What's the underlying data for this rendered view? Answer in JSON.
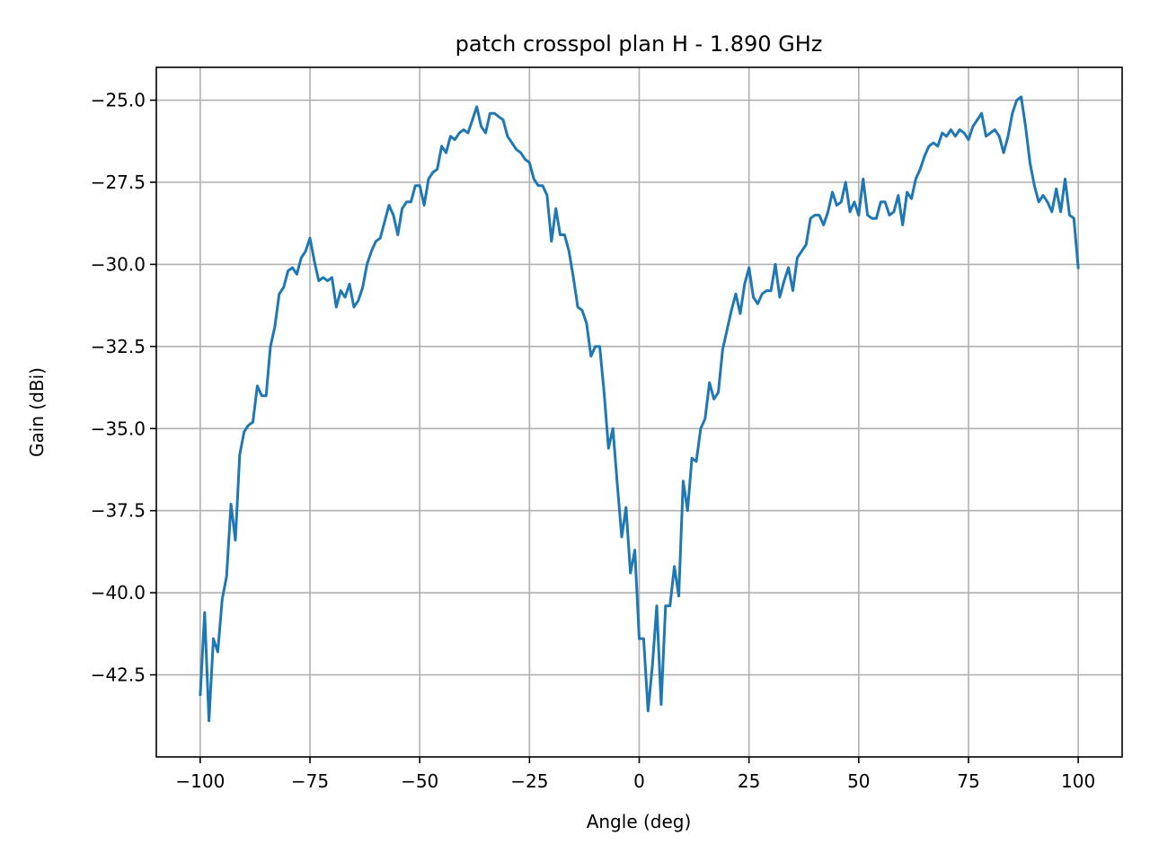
{
  "chart_data": {
    "type": "line",
    "title": "patch crosspol plan H - 1.890 GHz",
    "xlabel": "Angle (deg)",
    "ylabel": "Gain (dBi)",
    "xlim": [
      -110,
      110
    ],
    "ylim": [
      -45.0,
      -24.0
    ],
    "xticks": [
      -100,
      -75,
      -50,
      -25,
      0,
      25,
      50,
      75,
      100
    ],
    "xtick_labels": [
      "−100",
      "−75",
      "−50",
      "−25",
      "0",
      "25",
      "50",
      "75",
      "100"
    ],
    "yticks": [
      -25.0,
      -27.5,
      -30.0,
      -32.5,
      -35.0,
      -37.5,
      -40.0,
      -42.5
    ],
    "ytick_labels": [
      "−25.0",
      "−27.5",
      "−30.0",
      "−32.5",
      "−35.0",
      "−37.5",
      "−40.0",
      "−42.5"
    ],
    "grid": true,
    "line_color": "#1f77b4",
    "series": [
      {
        "points": [
          [
            -100,
            -43.1
          ],
          [
            -99,
            -40.6
          ],
          [
            -98,
            -43.9
          ],
          [
            -97,
            -41.4
          ],
          [
            -96,
            -41.8
          ],
          [
            -95,
            -40.2
          ],
          [
            -94,
            -39.5
          ],
          [
            -93,
            -37.3
          ],
          [
            -92,
            -38.4
          ],
          [
            -91,
            -35.8
          ],
          [
            -90,
            -35.1
          ],
          [
            -89,
            -34.9
          ],
          [
            -88,
            -34.8
          ],
          [
            -87,
            -33.7
          ],
          [
            -86,
            -34.0
          ],
          [
            -85,
            -34.0
          ],
          [
            -84,
            -32.5
          ],
          [
            -83,
            -31.9
          ],
          [
            -82,
            -30.9
          ],
          [
            -81,
            -30.7
          ],
          [
            -80,
            -30.2
          ],
          [
            -79,
            -30.1
          ],
          [
            -78,
            -30.3
          ],
          [
            -77,
            -29.8
          ],
          [
            -76,
            -29.6
          ],
          [
            -75,
            -29.2
          ],
          [
            -74,
            -29.9
          ],
          [
            -73,
            -30.5
          ],
          [
            -72,
            -30.4
          ],
          [
            -71,
            -30.5
          ],
          [
            -70,
            -30.4
          ],
          [
            -69,
            -31.3
          ],
          [
            -68,
            -30.8
          ],
          [
            -67,
            -31.0
          ],
          [
            -66,
            -30.6
          ],
          [
            -65,
            -31.3
          ],
          [
            -64,
            -31.1
          ],
          [
            -63,
            -30.7
          ],
          [
            -62,
            -30.0
          ],
          [
            -61,
            -29.6
          ],
          [
            -60,
            -29.3
          ],
          [
            -59,
            -29.2
          ],
          [
            -58,
            -28.7
          ],
          [
            -57,
            -28.2
          ],
          [
            -56,
            -28.5
          ],
          [
            -55,
            -29.1
          ],
          [
            -54,
            -28.3
          ],
          [
            -53,
            -28.1
          ],
          [
            -52,
            -28.1
          ],
          [
            -51,
            -27.6
          ],
          [
            -50,
            -27.6
          ],
          [
            -49,
            -28.2
          ],
          [
            -48,
            -27.4
          ],
          [
            -47,
            -27.2
          ],
          [
            -46,
            -27.1
          ],
          [
            -45,
            -26.4
          ],
          [
            -44,
            -26.6
          ],
          [
            -43,
            -26.1
          ],
          [
            -42,
            -26.2
          ],
          [
            -41,
            -26.0
          ],
          [
            -40,
            -25.9
          ],
          [
            -39,
            -26.0
          ],
          [
            -38,
            -25.6
          ],
          [
            -37,
            -25.2
          ],
          [
            -36,
            -25.8
          ],
          [
            -35,
            -26.0
          ],
          [
            -34,
            -25.4
          ],
          [
            -33,
            -25.4
          ],
          [
            -32,
            -25.5
          ],
          [
            -31,
            -25.6
          ],
          [
            -30,
            -26.1
          ],
          [
            -29,
            -26.3
          ],
          [
            -28,
            -26.5
          ],
          [
            -27,
            -26.6
          ],
          [
            -26,
            -26.8
          ],
          [
            -25,
            -26.9
          ],
          [
            -24,
            -27.4
          ],
          [
            -23,
            -27.6
          ],
          [
            -22,
            -27.6
          ],
          [
            -21,
            -27.9
          ],
          [
            -20,
            -29.3
          ],
          [
            -19,
            -28.3
          ],
          [
            -18,
            -29.1
          ],
          [
            -17,
            -29.1
          ],
          [
            -16,
            -29.6
          ],
          [
            -15,
            -30.4
          ],
          [
            -14,
            -31.3
          ],
          [
            -13,
            -31.4
          ],
          [
            -12,
            -31.8
          ],
          [
            -11,
            -32.8
          ],
          [
            -10,
            -32.5
          ],
          [
            -9,
            -32.5
          ],
          [
            -8,
            -33.9
          ],
          [
            -7,
            -35.6
          ],
          [
            -6,
            -35.0
          ],
          [
            -5,
            -36.7
          ],
          [
            -4,
            -38.3
          ],
          [
            -3,
            -37.4
          ],
          [
            -2,
            -39.4
          ],
          [
            -1,
            -38.7
          ],
          [
            0,
            -41.4
          ],
          [
            1,
            -41.4
          ],
          [
            2,
            -43.6
          ],
          [
            3,
            -42.2
          ],
          [
            4,
            -40.4
          ],
          [
            5,
            -43.4
          ],
          [
            6,
            -40.4
          ],
          [
            7,
            -40.4
          ],
          [
            8,
            -39.2
          ],
          [
            9,
            -40.1
          ],
          [
            10,
            -36.6
          ],
          [
            11,
            -37.5
          ],
          [
            12,
            -35.9
          ],
          [
            13,
            -36.0
          ],
          [
            14,
            -35.0
          ],
          [
            15,
            -34.7
          ],
          [
            16,
            -33.6
          ],
          [
            17,
            -34.1
          ],
          [
            18,
            -33.9
          ],
          [
            19,
            -32.6
          ],
          [
            20,
            -32.0
          ],
          [
            21,
            -31.4
          ],
          [
            22,
            -30.9
          ],
          [
            23,
            -31.5
          ],
          [
            24,
            -30.6
          ],
          [
            25,
            -30.1
          ],
          [
            26,
            -31.0
          ],
          [
            27,
            -31.2
          ],
          [
            28,
            -30.9
          ],
          [
            29,
            -30.8
          ],
          [
            30,
            -30.8
          ],
          [
            31,
            -30.0
          ],
          [
            32,
            -31.0
          ],
          [
            33,
            -30.5
          ],
          [
            34,
            -30.1
          ],
          [
            35,
            -30.8
          ],
          [
            36,
            -29.8
          ],
          [
            37,
            -29.6
          ],
          [
            38,
            -29.4
          ],
          [
            39,
            -28.6
          ],
          [
            40,
            -28.5
          ],
          [
            41,
            -28.5
          ],
          [
            42,
            -28.8
          ],
          [
            43,
            -28.4
          ],
          [
            44,
            -27.8
          ],
          [
            45,
            -28.2
          ],
          [
            46,
            -28.1
          ],
          [
            47,
            -27.5
          ],
          [
            48,
            -28.4
          ],
          [
            49,
            -28.1
          ],
          [
            50,
            -28.5
          ],
          [
            51,
            -27.4
          ],
          [
            52,
            -28.5
          ],
          [
            53,
            -28.6
          ],
          [
            54,
            -28.6
          ],
          [
            55,
            -28.1
          ],
          [
            56,
            -28.1
          ],
          [
            57,
            -28.5
          ],
          [
            58,
            -28.4
          ],
          [
            59,
            -27.9
          ],
          [
            60,
            -28.8
          ],
          [
            61,
            -27.8
          ],
          [
            62,
            -28.0
          ],
          [
            63,
            -27.4
          ],
          [
            64,
            -27.1
          ],
          [
            65,
            -26.7
          ],
          [
            66,
            -26.4
          ],
          [
            67,
            -26.3
          ],
          [
            68,
            -26.4
          ],
          [
            69,
            -26.0
          ],
          [
            70,
            -26.1
          ],
          [
            71,
            -25.9
          ],
          [
            72,
            -26.1
          ],
          [
            73,
            -25.9
          ],
          [
            74,
            -26.0
          ],
          [
            75,
            -26.2
          ],
          [
            76,
            -25.8
          ],
          [
            77,
            -25.6
          ],
          [
            78,
            -25.4
          ],
          [
            79,
            -26.1
          ],
          [
            80,
            -26.0
          ],
          [
            81,
            -25.9
          ],
          [
            82,
            -26.1
          ],
          [
            83,
            -26.6
          ],
          [
            84,
            -26.1
          ],
          [
            85,
            -25.4
          ],
          [
            86,
            -25.0
          ],
          [
            87,
            -24.9
          ],
          [
            88,
            -25.8
          ],
          [
            89,
            -26.9
          ],
          [
            90,
            -27.6
          ],
          [
            91,
            -28.1
          ],
          [
            92,
            -27.9
          ],
          [
            93,
            -28.1
          ],
          [
            94,
            -28.4
          ],
          [
            95,
            -27.7
          ],
          [
            96,
            -28.4
          ],
          [
            97,
            -27.4
          ],
          [
            98,
            -28.5
          ],
          [
            99,
            -28.6
          ],
          [
            100,
            -30.1
          ]
        ]
      }
    ]
  }
}
